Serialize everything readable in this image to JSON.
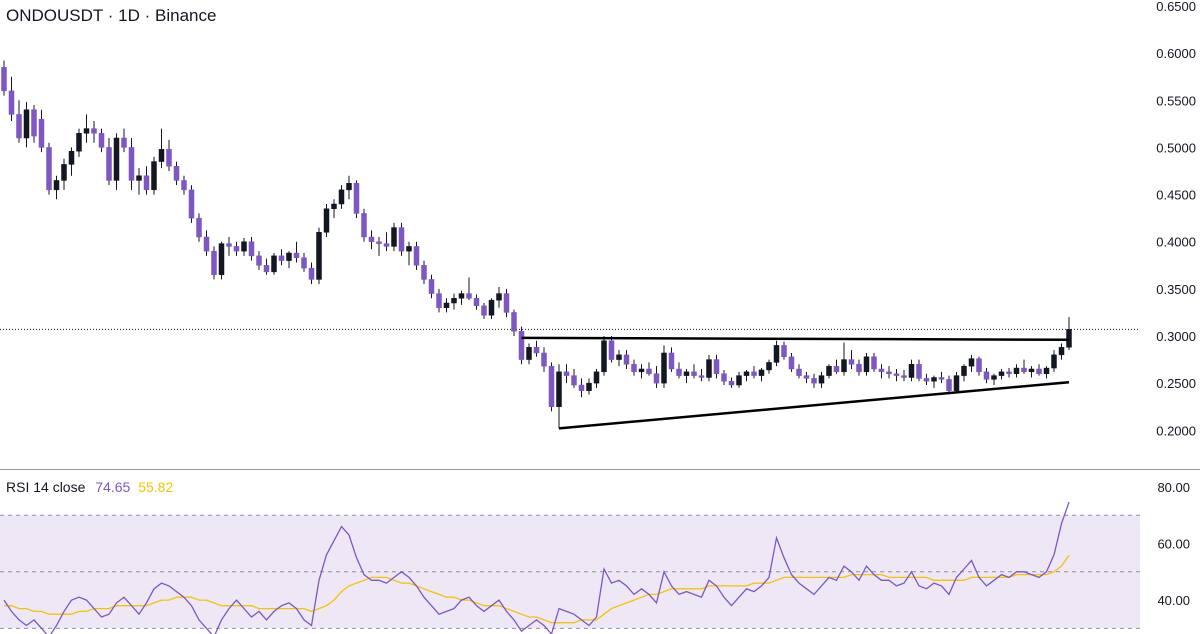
{
  "chart_title": {
    "symbol": "ONDOUSDT",
    "interval": "1D",
    "exchange": "Binance",
    "sep": "·"
  },
  "colors": {
    "candle": "#7e57c2",
    "wick": "#131722",
    "rsi_line": "#7e57c2",
    "rsi_ma": "#f5c400",
    "rsi_band": "#ede7f6",
    "trendline": "#000000"
  },
  "chart_data": [
    {
      "type": "candlestick",
      "title": "ONDOUSDT · 1D · Binance",
      "ylim": [
        0.16,
        0.65
      ],
      "y_ticks": [
        "0.6500",
        "0.6000",
        "0.5500",
        "0.5000",
        "0.4500",
        "0.4000",
        "0.3500",
        "0.3000",
        "0.2500",
        "0.2000"
      ],
      "last_price": 0.307,
      "ohlc": [
        [
          0.585,
          0.592,
          0.555,
          0.56
        ],
        [
          0.56,
          0.575,
          0.528,
          0.535
        ],
        [
          0.535,
          0.55,
          0.505,
          0.51
        ],
        [
          0.51,
          0.548,
          0.5,
          0.54
        ],
        [
          0.54,
          0.545,
          0.505,
          0.512
        ],
        [
          0.53,
          0.54,
          0.495,
          0.5
        ],
        [
          0.5,
          0.505,
          0.45,
          0.455
        ],
        [
          0.455,
          0.47,
          0.445,
          0.465
        ],
        [
          0.465,
          0.488,
          0.455,
          0.482
        ],
        [
          0.482,
          0.5,
          0.47,
          0.496
        ],
        [
          0.496,
          0.52,
          0.49,
          0.515
        ],
        [
          0.515,
          0.535,
          0.505,
          0.52
        ],
        [
          0.52,
          0.528,
          0.505,
          0.515
        ],
        [
          0.515,
          0.52,
          0.495,
          0.5
        ],
        [
          0.5,
          0.51,
          0.46,
          0.465
        ],
        [
          0.465,
          0.515,
          0.455,
          0.51
        ],
        [
          0.51,
          0.52,
          0.495,
          0.5
        ],
        [
          0.5,
          0.51,
          0.455,
          0.465
        ],
        [
          0.465,
          0.478,
          0.45,
          0.47
        ],
        [
          0.47,
          0.48,
          0.45,
          0.455
        ],
        [
          0.455,
          0.49,
          0.45,
          0.485
        ],
        [
          0.485,
          0.52,
          0.478,
          0.498
        ],
        [
          0.498,
          0.508,
          0.475,
          0.48
        ],
        [
          0.48,
          0.485,
          0.46,
          0.465
        ],
        [
          0.465,
          0.47,
          0.45,
          0.455
        ],
        [
          0.455,
          0.46,
          0.42,
          0.425
        ],
        [
          0.425,
          0.43,
          0.4,
          0.405
        ],
        [
          0.405,
          0.412,
          0.385,
          0.39
        ],
        [
          0.39,
          0.395,
          0.36,
          0.365
        ],
        [
          0.365,
          0.4,
          0.36,
          0.398
        ],
        [
          0.398,
          0.405,
          0.385,
          0.395
        ],
        [
          0.395,
          0.4,
          0.385,
          0.39
        ],
        [
          0.39,
          0.404,
          0.385,
          0.4
        ],
        [
          0.4,
          0.405,
          0.38,
          0.385
        ],
        [
          0.385,
          0.39,
          0.37,
          0.375
        ],
        [
          0.375,
          0.382,
          0.365,
          0.368
        ],
        [
          0.368,
          0.388,
          0.365,
          0.385
        ],
        [
          0.385,
          0.392,
          0.375,
          0.38
        ],
        [
          0.38,
          0.39,
          0.372,
          0.388
        ],
        [
          0.388,
          0.4,
          0.378,
          0.383
        ],
        [
          0.383,
          0.388,
          0.368,
          0.372
        ],
        [
          0.372,
          0.378,
          0.355,
          0.36
        ],
        [
          0.36,
          0.415,
          0.355,
          0.41
        ],
        [
          0.41,
          0.44,
          0.405,
          0.435
        ],
        [
          0.435,
          0.445,
          0.425,
          0.44
        ],
        [
          0.44,
          0.46,
          0.435,
          0.455
        ],
        [
          0.455,
          0.47,
          0.445,
          0.462
        ],
        [
          0.462,
          0.465,
          0.425,
          0.43
        ],
        [
          0.43,
          0.435,
          0.4,
          0.405
        ],
        [
          0.405,
          0.412,
          0.392,
          0.4
        ],
        [
          0.4,
          0.405,
          0.385,
          0.398
        ],
        [
          0.398,
          0.41,
          0.39,
          0.395
        ],
        [
          0.395,
          0.42,
          0.39,
          0.415
        ],
        [
          0.415,
          0.42,
          0.385,
          0.39
        ],
        [
          0.39,
          0.4,
          0.375,
          0.395
        ],
        [
          0.395,
          0.4,
          0.37,
          0.375
        ],
        [
          0.375,
          0.38,
          0.355,
          0.36
        ],
        [
          0.36,
          0.365,
          0.34,
          0.345
        ],
        [
          0.345,
          0.35,
          0.325,
          0.33
        ],
        [
          0.33,
          0.34,
          0.325,
          0.335
        ],
        [
          0.335,
          0.345,
          0.328,
          0.34
        ],
        [
          0.34,
          0.348,
          0.333,
          0.345
        ],
        [
          0.345,
          0.362,
          0.338,
          0.34
        ],
        [
          0.34,
          0.344,
          0.328,
          0.332
        ],
        [
          0.332,
          0.335,
          0.318,
          0.322
        ],
        [
          0.322,
          0.34,
          0.318,
          0.338
        ],
        [
          0.338,
          0.352,
          0.33,
          0.345
        ],
        [
          0.345,
          0.35,
          0.32,
          0.325
        ],
        [
          0.325,
          0.328,
          0.3,
          0.305
        ],
        [
          0.305,
          0.31,
          0.27,
          0.275
        ],
        [
          0.275,
          0.292,
          0.27,
          0.288
        ],
        [
          0.288,
          0.295,
          0.278,
          0.282
        ],
        [
          0.282,
          0.288,
          0.262,
          0.268
        ],
        [
          0.268,
          0.272,
          0.22,
          0.225
        ],
        [
          0.225,
          0.27,
          0.202,
          0.262
        ],
        [
          0.262,
          0.27,
          0.25,
          0.258
        ],
        [
          0.258,
          0.265,
          0.245,
          0.248
        ],
        [
          0.248,
          0.255,
          0.235,
          0.242
        ],
        [
          0.242,
          0.255,
          0.238,
          0.25
        ],
        [
          0.25,
          0.265,
          0.245,
          0.262
        ],
        [
          0.262,
          0.3,
          0.258,
          0.295
        ],
        [
          0.295,
          0.3,
          0.272,
          0.275
        ],
        [
          0.275,
          0.285,
          0.268,
          0.28
        ],
        [
          0.28,
          0.285,
          0.265,
          0.27
        ],
        [
          0.27,
          0.275,
          0.258,
          0.262
        ],
        [
          0.262,
          0.27,
          0.255,
          0.265
        ],
        [
          0.265,
          0.272,
          0.258,
          0.26
        ],
        [
          0.26,
          0.268,
          0.245,
          0.25
        ],
        [
          0.25,
          0.29,
          0.245,
          0.282
        ],
        [
          0.282,
          0.288,
          0.262,
          0.265
        ],
        [
          0.265,
          0.272,
          0.255,
          0.258
        ],
        [
          0.258,
          0.265,
          0.25,
          0.262
        ],
        [
          0.262,
          0.27,
          0.255,
          0.258
        ],
        [
          0.258,
          0.265,
          0.252,
          0.256
        ],
        [
          0.256,
          0.28,
          0.252,
          0.275
        ],
        [
          0.275,
          0.28,
          0.255,
          0.26
        ],
        [
          0.26,
          0.264,
          0.248,
          0.252
        ],
        [
          0.252,
          0.256,
          0.245,
          0.248
        ],
        [
          0.248,
          0.262,
          0.245,
          0.258
        ],
        [
          0.258,
          0.264,
          0.252,
          0.262
        ],
        [
          0.262,
          0.268,
          0.255,
          0.258
        ],
        [
          0.258,
          0.266,
          0.252,
          0.264
        ],
        [
          0.264,
          0.275,
          0.26,
          0.272
        ],
        [
          0.272,
          0.295,
          0.268,
          0.29
        ],
        [
          0.29,
          0.294,
          0.275,
          0.278
        ],
        [
          0.278,
          0.282,
          0.262,
          0.265
        ],
        [
          0.265,
          0.27,
          0.255,
          0.258
        ],
        [
          0.258,
          0.262,
          0.25,
          0.255
        ],
        [
          0.255,
          0.26,
          0.245,
          0.25
        ],
        [
          0.25,
          0.262,
          0.245,
          0.258
        ],
        [
          0.258,
          0.27,
          0.255,
          0.268
        ],
        [
          0.268,
          0.275,
          0.26,
          0.262
        ],
        [
          0.262,
          0.293,
          0.258,
          0.275
        ],
        [
          0.275,
          0.285,
          0.265,
          0.27
        ],
        [
          0.27,
          0.275,
          0.258,
          0.262
        ],
        [
          0.262,
          0.282,
          0.258,
          0.278
        ],
        [
          0.278,
          0.282,
          0.262,
          0.265
        ],
        [
          0.265,
          0.27,
          0.255,
          0.262
        ],
        [
          0.262,
          0.268,
          0.255,
          0.26
        ],
        [
          0.26,
          0.265,
          0.252,
          0.258
        ],
        [
          0.258,
          0.264,
          0.252,
          0.256
        ],
        [
          0.256,
          0.275,
          0.252,
          0.27
        ],
        [
          0.27,
          0.275,
          0.252,
          0.255
        ],
        [
          0.255,
          0.26,
          0.248,
          0.252
        ],
        [
          0.252,
          0.258,
          0.245,
          0.256
        ],
        [
          0.256,
          0.262,
          0.25,
          0.254
        ],
        [
          0.254,
          0.258,
          0.238,
          0.242
        ],
        [
          0.242,
          0.262,
          0.24,
          0.258
        ],
        [
          0.258,
          0.27,
          0.252,
          0.268
        ],
        [
          0.268,
          0.28,
          0.262,
          0.276
        ],
        [
          0.276,
          0.278,
          0.258,
          0.262
        ],
        [
          0.262,
          0.266,
          0.25,
          0.254
        ],
        [
          0.254,
          0.26,
          0.248,
          0.258
        ],
        [
          0.258,
          0.265,
          0.254,
          0.262
        ],
        [
          0.262,
          0.266,
          0.256,
          0.26
        ],
        [
          0.26,
          0.27,
          0.256,
          0.266
        ],
        [
          0.266,
          0.275,
          0.26,
          0.262
        ],
        [
          0.262,
          0.268,
          0.256,
          0.265
        ],
        [
          0.265,
          0.27,
          0.258,
          0.26
        ],
        [
          0.26,
          0.268,
          0.255,
          0.266
        ],
        [
          0.266,
          0.285,
          0.262,
          0.28
        ],
        [
          0.28,
          0.292,
          0.275,
          0.288
        ],
        [
          0.288,
          0.32,
          0.285,
          0.307
        ]
      ],
      "trendlines": [
        {
          "name": "resistance",
          "x": [
            0,
            0
          ],
          "y": [
            0.298,
            0.296
          ]
        },
        {
          "name": "support",
          "x": [
            0,
            0
          ],
          "y": [
            0.202,
            0.251
          ]
        }
      ]
    },
    {
      "type": "line",
      "title": "RSI 14 close",
      "ylim": [
        28,
        86
      ],
      "y_ticks": [
        "80.00",
        "60.00",
        "40.00"
      ],
      "upper_band": 70,
      "middle_band": 50,
      "lower_band": 30,
      "current_values": [
        "74.65",
        "55.82"
      ],
      "series": [
        {
          "values": [
            40,
            36,
            33,
            31,
            33,
            30,
            27,
            31,
            36,
            40,
            41,
            40,
            37,
            34,
            35,
            39,
            41,
            38,
            35,
            39,
            44,
            46,
            45,
            43,
            41,
            38,
            33,
            30,
            27,
            33,
            37,
            40,
            37,
            34,
            36,
            33,
            36,
            38,
            39,
            37,
            33,
            31,
            47,
            56,
            61,
            66,
            63,
            55,
            49,
            47,
            47,
            46,
            48,
            50,
            48,
            45,
            41,
            38,
            35,
            36,
            37,
            40,
            41,
            38,
            36,
            38,
            40,
            36,
            33,
            29,
            31,
            33,
            31,
            28,
            37,
            36,
            35,
            33,
            31,
            34,
            51,
            46,
            47,
            45,
            42,
            44,
            42,
            39,
            50,
            45,
            42,
            43,
            42,
            41,
            47,
            45,
            41,
            38,
            41,
            44,
            43,
            45,
            48,
            62,
            55,
            49,
            46,
            44,
            42,
            45,
            48,
            47,
            52,
            50,
            47,
            52,
            49,
            47,
            47,
            45,
            46,
            50,
            45,
            44,
            46,
            45,
            42,
            48,
            51,
            54,
            48,
            45,
            47,
            49,
            48,
            50,
            50,
            49,
            48,
            50,
            56,
            67,
            74.65
          ]
        },
        {
          "values": [
            38,
            38,
            37,
            37,
            36,
            36,
            35,
            35,
            35,
            35,
            36,
            36,
            37,
            37,
            37,
            38,
            38,
            38,
            38,
            38,
            39,
            40,
            40,
            41,
            41,
            41,
            40,
            40,
            39,
            38,
            38,
            38,
            38,
            38,
            37,
            37,
            37,
            37,
            37,
            37,
            37,
            36,
            37,
            38,
            40,
            43,
            45,
            46,
            47,
            48,
            48,
            48,
            47,
            46,
            46,
            45,
            44,
            43,
            42,
            41,
            41,
            40,
            40,
            39,
            38,
            38,
            38,
            37,
            36,
            35,
            34,
            34,
            33,
            32,
            32,
            32,
            32,
            33,
            33,
            33,
            35,
            37,
            38,
            39,
            40,
            41,
            42,
            42,
            43,
            44,
            44,
            44,
            44,
            44,
            45,
            45,
            45,
            45,
            45,
            45,
            46,
            46,
            46,
            47,
            48,
            48,
            48,
            48,
            48,
            48,
            48,
            48,
            48,
            49,
            49,
            49,
            49,
            49,
            48,
            48,
            48,
            48,
            48,
            48,
            47,
            47,
            47,
            47,
            47,
            48,
            48,
            48,
            48,
            48,
            48,
            49,
            49,
            49,
            49,
            49,
            50,
            52,
            55.82
          ]
        }
      ]
    }
  ]
}
